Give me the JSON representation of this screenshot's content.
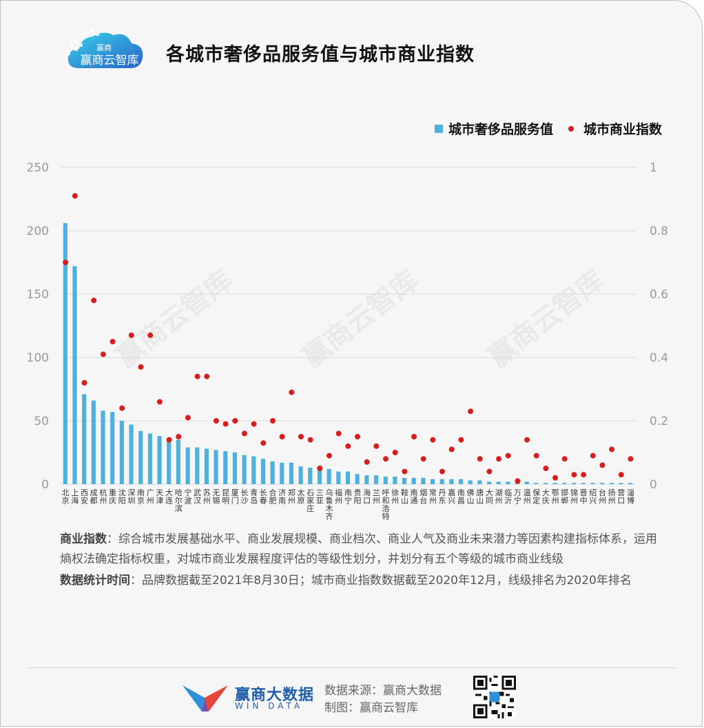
{
  "header": {
    "logo_text": "赢商云智库",
    "title": "各城市奢侈品服务值与城市商业指数"
  },
  "chart_data": {
    "type": "bar",
    "title": "各城市奢侈品服务值与城市商业指数",
    "categories": [
      "北京",
      "上海",
      "西安",
      "成都",
      "杭州",
      "重庆",
      "沈阳",
      "深圳",
      "南京",
      "广州",
      "天津",
      "大连",
      "哈尔滨",
      "宁波",
      "武汉",
      "苏州",
      "无锡",
      "昆明",
      "厦门",
      "长沙",
      "青岛",
      "长春",
      "合肥",
      "济南",
      "郑州",
      "太原",
      "石家庄",
      "三亚",
      "乌鲁木齐",
      "福州",
      "南宁",
      "贵阳",
      "海口",
      "兰州",
      "呼和浩特",
      "徐州",
      "鞍山",
      "南通",
      "烟台",
      "常州",
      "丹东",
      "嘉兴",
      "南昌",
      "佛山",
      "唐山",
      "大同",
      "湖州",
      "临沂",
      "万宁",
      "温州",
      "保定",
      "大庆",
      "鄂州",
      "邯郸",
      "锦州",
      "晋中",
      "绍兴",
      "台州",
      "扬州",
      "营口",
      "淄博"
    ],
    "series": [
      {
        "name": "城市奢侈品服务值",
        "type": "bar",
        "axis": "left",
        "color": "#4fb0de",
        "values": [
          206,
          172,
          71,
          66,
          58,
          57,
          50,
          47,
          42,
          40,
          38,
          36,
          35,
          29,
          29,
          28,
          27,
          26,
          25,
          23,
          22,
          20,
          18,
          17,
          17,
          14,
          13,
          12,
          12,
          10,
          10,
          8,
          7,
          7,
          6,
          6,
          5,
          5,
          5,
          4,
          4,
          4,
          4,
          3,
          3,
          2,
          2,
          2,
          1,
          2,
          1,
          1,
          1,
          1,
          1,
          1,
          1,
          1,
          1,
          1,
          1
        ]
      },
      {
        "name": "城市商业指数",
        "type": "scatter",
        "axis": "right",
        "color": "#d81d1d",
        "values": [
          0.7,
          0.91,
          0.32,
          0.58,
          0.41,
          0.45,
          0.24,
          0.47,
          0.37,
          0.47,
          0.26,
          0.14,
          0.15,
          0.21,
          0.34,
          0.34,
          0.2,
          0.19,
          0.2,
          0.16,
          0.19,
          0.13,
          0.2,
          0.15,
          0.29,
          0.15,
          0.14,
          0.05,
          0.09,
          0.16,
          0.12,
          0.15,
          0.07,
          0.12,
          0.08,
          0.1,
          0.04,
          0.15,
          0.08,
          0.14,
          0.04,
          0.11,
          0.14,
          0.23,
          0.08,
          0.04,
          0.08,
          0.09,
          0.01,
          0.14,
          0.09,
          0.05,
          0.02,
          0.08,
          0.03,
          0.03,
          0.09,
          0.06,
          0.11,
          0.03,
          0.08
        ]
      }
    ],
    "ylim": [
      0,
      250
    ],
    "y_ticks": [
      "0",
      "50",
      "100",
      "150",
      "200",
      "250"
    ],
    "y2lim": [
      0,
      1
    ],
    "y2_ticks": [
      "0",
      "0.2",
      "0.4",
      "0.6",
      "0.8",
      "1"
    ],
    "grid": true,
    "legend_position": "top-right"
  },
  "legend": {
    "bar_label": "城市奢侈品服务值",
    "dot_label": "城市商业指数"
  },
  "notes": {
    "label1": "商业指数",
    "text1": "：综合城市发展基础水平、商业发展规模、商业档次、商业人气及商业未来潜力等因素构建指标体系，运用熵权法确定指标权重，对城市商业发展程度评估的等级性划分，并划分有五个等级的城市商业线级",
    "label2": "数据统计时间",
    "text2": "：品牌数据截至2021年8月30日；城市商业指数数据截至2020年12月，线级排名为2020年排名"
  },
  "watermark": "赢商云智库",
  "footer": {
    "brand_cn": "赢商大数据",
    "brand_en": "WIN DATA",
    "source": "数据来源：赢商大数据",
    "maker": "制图：赢商云智库"
  },
  "colors": {
    "bar": "#4fb0de",
    "dot": "#d81d1d",
    "brand": "#1f5fae"
  }
}
